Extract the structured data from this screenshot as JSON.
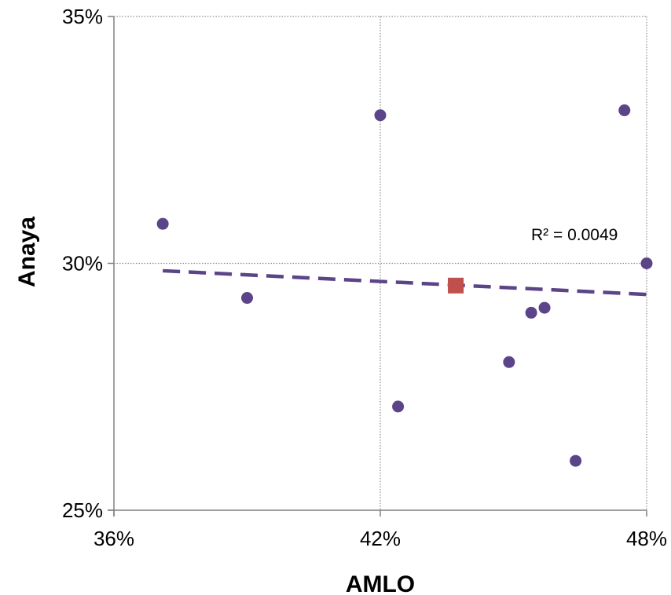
{
  "chart_data": {
    "type": "scatter",
    "xlabel": "AMLO",
    "ylabel": "Anaya",
    "xlim": [
      0.36,
      0.48
    ],
    "ylim": [
      0.25,
      0.35
    ],
    "x_ticks": [
      0.36,
      0.42,
      0.48
    ],
    "x_tick_labels": [
      "36%",
      "42%",
      "48%"
    ],
    "y_ticks": [
      0.25,
      0.3,
      0.35
    ],
    "y_tick_labels": [
      "25%",
      "30%",
      "35%"
    ],
    "grid": "dotted",
    "series": [
      {
        "marker": "circle",
        "color": "#5b4487",
        "points": [
          {
            "x": 0.371,
            "y": 0.308
          },
          {
            "x": 0.39,
            "y": 0.293
          },
          {
            "x": 0.42,
            "y": 0.33
          },
          {
            "x": 0.424,
            "y": 0.271
          },
          {
            "x": 0.449,
            "y": 0.28
          },
          {
            "x": 0.454,
            "y": 0.29
          },
          {
            "x": 0.457,
            "y": 0.291
          },
          {
            "x": 0.464,
            "y": 0.26
          },
          {
            "x": 0.475,
            "y": 0.331
          },
          {
            "x": 0.48,
            "y": 0.3
          }
        ]
      },
      {
        "marker": "square",
        "color": "#c0504d",
        "points": [
          {
            "x": 0.437,
            "y": 0.2955
          }
        ]
      }
    ],
    "trendline": {
      "style": "dashed",
      "color": "#5b4487",
      "x": [
        0.371,
        0.48
      ],
      "y": [
        0.2985,
        0.2937
      ]
    },
    "annotation": "R² = 0.0049"
  }
}
